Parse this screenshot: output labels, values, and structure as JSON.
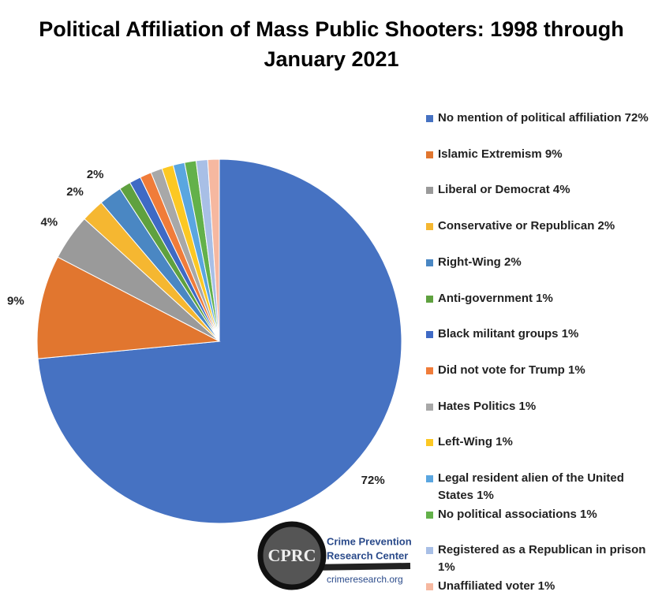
{
  "chart_data": {
    "type": "pie",
    "title": "Political Affiliation of Mass Public Shooters: 1998 through January 2021",
    "categories": [
      "No mention of political affiliation 72%",
      "Islamic Extremism 9%",
      "Liberal or Democrat 4%",
      "Conservative or Republican 2%",
      "Right-Wing 2%",
      "Anti-government 1%",
      "Black militant groups 1%",
      "Did not vote for Trump 1%",
      "Hates Politics 1%",
      "Left-Wing 1%",
      "Legal resident alien of the United States 1%",
      "No political associations 1%",
      "Registered as a Republican in prison 1%",
      "Unaffiliated voter 1%"
    ],
    "values": [
      72,
      9,
      4,
      2,
      2,
      1,
      1,
      1,
      1,
      1,
      1,
      1,
      1,
      1
    ],
    "value_labels": [
      "72%",
      "9%",
      "4%",
      "2%",
      "2%",
      null,
      null,
      null,
      null,
      null,
      null,
      null,
      null,
      null
    ],
    "colors": [
      "#4672c2",
      "#e1762f",
      "#9a9a9a",
      "#f5b731",
      "#4a87c3",
      "#5fa13f",
      "#3f6ac5",
      "#f07c3a",
      "#a8a8a8",
      "#fcc823",
      "#5aa6e0",
      "#63b14a",
      "#a8bfe6",
      "#f6b8a0"
    ],
    "legend": "right"
  },
  "logo": {
    "mark": "CPRC",
    "name_line1": "Crime Prevention",
    "name_line2": "Research Center",
    "url": "crimeresearch.org"
  }
}
